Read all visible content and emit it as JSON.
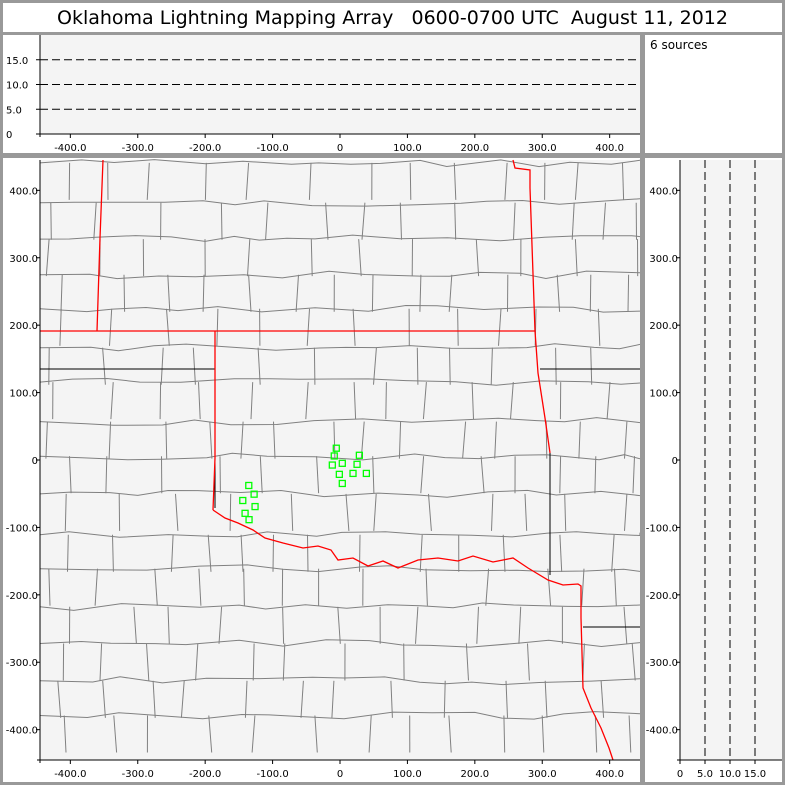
{
  "title": "Oklahoma Lightning Mapping Array   0600-0700 UTC  August 11, 2012",
  "legend": {
    "source_count": "6 sources"
  },
  "colors": {
    "sources": "#00ff00",
    "state_border": "#ff0000",
    "county": "#808080",
    "plot_bg": "#f4f4f4"
  },
  "chart_data": [
    {
      "type": "scatter",
      "panel": "altitude-vs-east-west",
      "xlim": [
        -445,
        445
      ],
      "ylim": [
        0,
        20
      ],
      "xticks": [
        "-400.0",
        "-300.0",
        "-200.0",
        "-100.0",
        "0",
        "100.0",
        "200.0",
        "300.0",
        "400.0"
      ],
      "yticks": [
        "0",
        "5.0",
        "10.0",
        "15.0"
      ],
      "dashed_levels": [
        5,
        10,
        15
      ]
    },
    {
      "type": "scatter",
      "panel": "plan-view-map",
      "xlim": [
        -445,
        445
      ],
      "ylim": [
        -445,
        445
      ],
      "xticks": [
        "-400.0",
        "-300.0",
        "-200.0",
        "-100.0",
        "0",
        "100.0",
        "200.0",
        "300.0",
        "400.0"
      ],
      "yticks": [
        "-400.0",
        "-300.0",
        "-200.0",
        "-100.0",
        "0",
        "100.0",
        "200.0",
        "300.0",
        "400.0"
      ],
      "points": [
        [
          -5.5,
          17.5
        ],
        [
          -8.5,
          6
        ],
        [
          28.7,
          7
        ],
        [
          -11.4,
          -7.5
        ],
        [
          3.4,
          -4.9
        ],
        [
          25.3,
          -6.4
        ],
        [
          -1,
          -21.3
        ],
        [
          19.3,
          -19.9
        ],
        [
          39.1,
          -19.9
        ],
        [
          3.4,
          -34.8
        ],
        [
          -135.3,
          -37.8
        ],
        [
          -127.4,
          -50.7
        ],
        [
          -144.2,
          -60.1
        ],
        [
          -126,
          -69.1
        ],
        [
          -140.8,
          -79.1
        ],
        [
          -134.9,
          -88.5
        ]
      ],
      "marker": "open-square"
    },
    {
      "type": "scatter",
      "panel": "north-south-vs-altitude",
      "xlim": [
        0,
        20
      ],
      "ylim": [
        -445,
        445
      ],
      "xticks": [
        "0",
        "5.0",
        "10.0",
        "15.0"
      ],
      "dashed_levels": [
        5,
        10,
        15
      ]
    }
  ]
}
